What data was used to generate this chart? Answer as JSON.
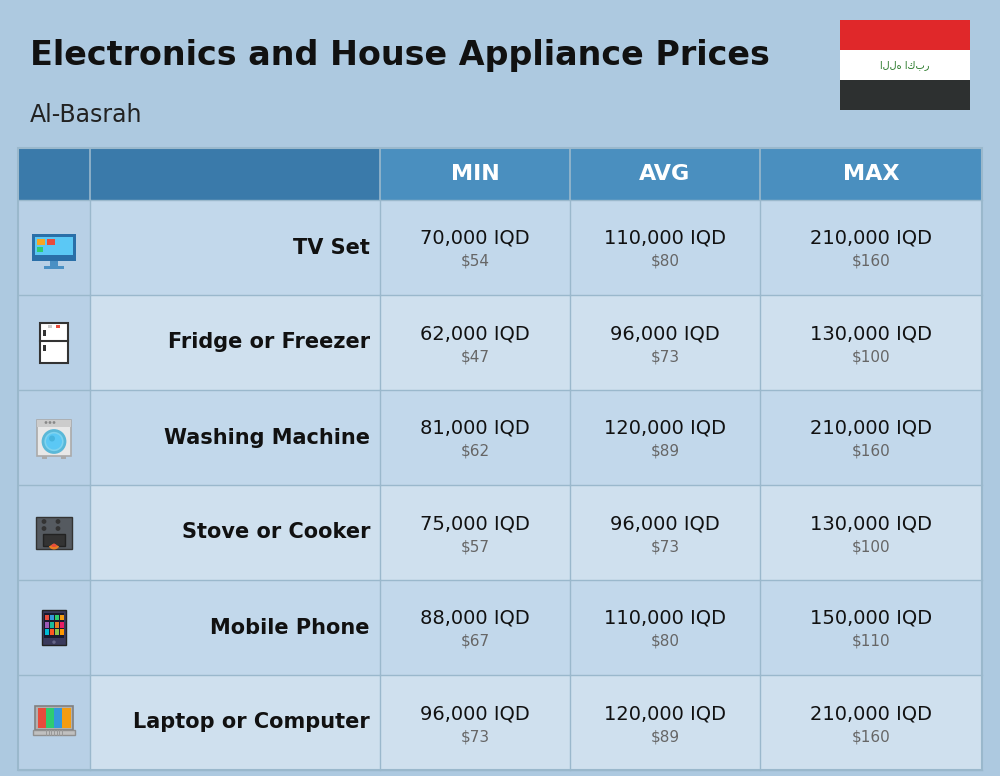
{
  "title_main": "Electronics and House Appliance Prices",
  "subtitle": "Al-Basrah",
  "bg_color": "#adc9e0",
  "header_color": "#4a8fbf",
  "header_dark_color": "#3a7aaa",
  "header_text_color": "#ffffff",
  "row_color_even": "#c2d8eb",
  "row_color_odd": "#cfe0ee",
  "icon_col_color": "#b8d0e6",
  "divider_color": "#9ab8cc",
  "col_headers": [
    "MIN",
    "AVG",
    "MAX"
  ],
  "items": [
    {
      "name": "TV Set",
      "min_iqd": "70,000 IQD",
      "min_usd": "$54",
      "avg_iqd": "110,000 IQD",
      "avg_usd": "$80",
      "max_iqd": "210,000 IQD",
      "max_usd": "$160"
    },
    {
      "name": "Fridge or Freezer",
      "min_iqd": "62,000 IQD",
      "min_usd": "$47",
      "avg_iqd": "96,000 IQD",
      "avg_usd": "$73",
      "max_iqd": "130,000 IQD",
      "max_usd": "$100"
    },
    {
      "name": "Washing Machine",
      "min_iqd": "81,000 IQD",
      "min_usd": "$62",
      "avg_iqd": "120,000 IQD",
      "avg_usd": "$89",
      "max_iqd": "210,000 IQD",
      "max_usd": "$160"
    },
    {
      "name": "Stove or Cooker",
      "min_iqd": "75,000 IQD",
      "min_usd": "$57",
      "avg_iqd": "96,000 IQD",
      "avg_usd": "$73",
      "max_iqd": "130,000 IQD",
      "max_usd": "$100"
    },
    {
      "name": "Mobile Phone",
      "min_iqd": "88,000 IQD",
      "min_usd": "$67",
      "avg_iqd": "110,000 IQD",
      "avg_usd": "$80",
      "max_iqd": "150,000 IQD",
      "max_usd": "$110"
    },
    {
      "name": "Laptop or Computer",
      "min_iqd": "96,000 IQD",
      "min_usd": "$73",
      "avg_iqd": "120,000 IQD",
      "avg_usd": "$89",
      "max_iqd": "210,000 IQD",
      "max_usd": "$160"
    }
  ],
  "flag_red": "#e0282a",
  "flag_white": "#ffffff",
  "flag_black": "#2d3030",
  "flag_green": "#2a7a2a",
  "name_fontsize": 15,
  "iqd_fontsize": 14,
  "usd_fontsize": 11,
  "header_fontsize": 16,
  "title_fontsize": 24,
  "subtitle_fontsize": 17
}
